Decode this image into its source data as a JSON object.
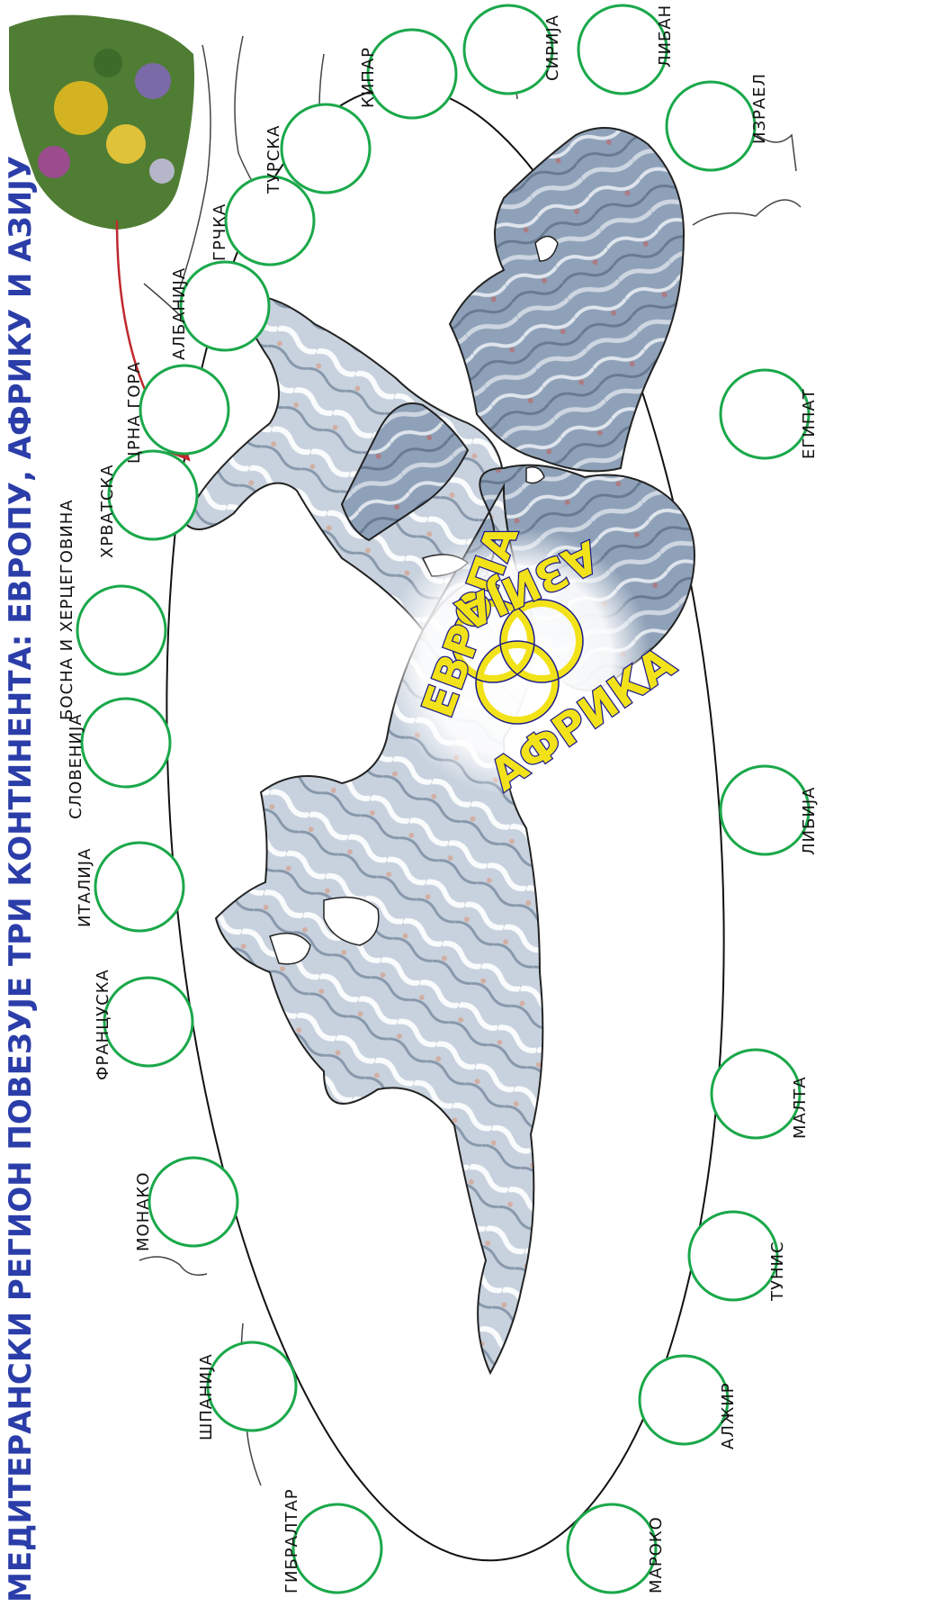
{
  "header": {
    "title": "МЕДИТЕРАНСКИ РЕГИОН ПОВЕЗУЈЕ ТРИ КОНТИНЕНТА: ЕВРОПУ, АФРИКУ И АЗИЈУ"
  },
  "countries_north": [
    {
      "id": "gibraltar",
      "label": "ГИБРАЛТАР"
    },
    {
      "id": "spain",
      "label": "ШПАНИЈА"
    },
    {
      "id": "monaco",
      "label": "МОНАКО"
    },
    {
      "id": "france",
      "label": "ФРАНЦУСКА"
    },
    {
      "id": "italy",
      "label": "ИТАЛИЈА"
    },
    {
      "id": "slovenia",
      "label": "СЛОВЕНИЈА"
    },
    {
      "id": "bosnia",
      "label": "БОСНА И ХЕРЦЕГОВИНА"
    },
    {
      "id": "croatia",
      "label": "ХРВАТСКА"
    },
    {
      "id": "montenegro",
      "label": "ЦРНА ГОРА"
    },
    {
      "id": "albania",
      "label": "АЛБАНИЈА"
    },
    {
      "id": "greece",
      "label": "ГРЧКА"
    },
    {
      "id": "turkey",
      "label": "ТУРСКА"
    },
    {
      "id": "cyprus",
      "label": "КИПАР"
    },
    {
      "id": "syria",
      "label": "СИРИЈА"
    },
    {
      "id": "lebanon",
      "label": "ЛИБАН"
    },
    {
      "id": "israel",
      "label": "ИЗРАЕЛ"
    }
  ],
  "countries_south": [
    {
      "id": "morocco",
      "label": "МАРОКО"
    },
    {
      "id": "algeria",
      "label": "АЛЖИР"
    },
    {
      "id": "tunisia",
      "label": "ТУНИС"
    },
    {
      "id": "malta",
      "label": "МАЛТА"
    },
    {
      "id": "libya",
      "label": "ЛИБИЈА"
    },
    {
      "id": "egypt",
      "label": "ЕГИПАТ"
    }
  ],
  "emblem": {
    "europe": "ЕВРОПА",
    "africa": "АФРИКА",
    "asia": "АЗИЈА"
  },
  "colors": {
    "header": "#2b3da8",
    "circle_stroke": "#1aa84a",
    "arrow": "#c0282d",
    "sea": "#8ea1b8",
    "emblem_fill": "#f2e21a"
  }
}
